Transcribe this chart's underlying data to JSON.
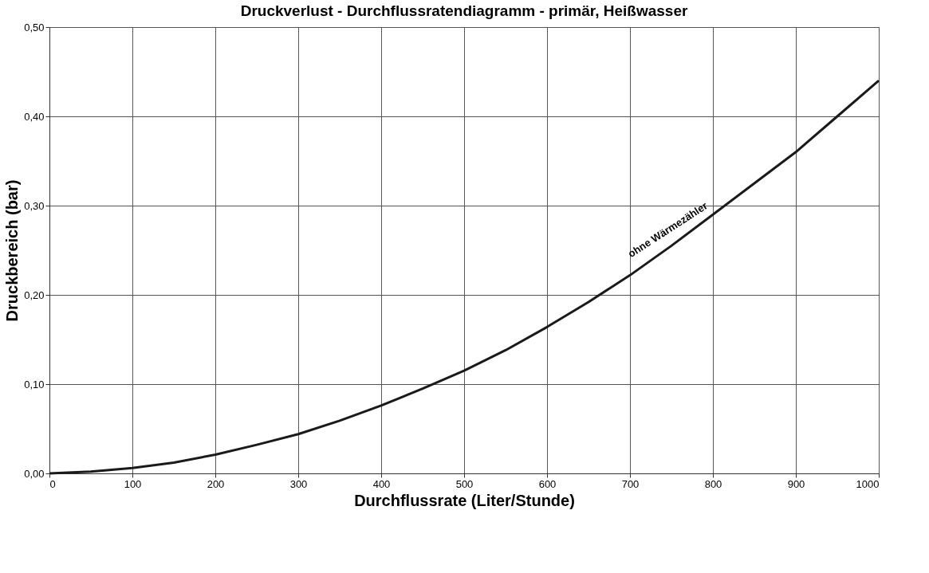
{
  "chart_data": {
    "type": "line",
    "title": "Druckverlust - Durchflussratendiagramm - primär, Heißwasser",
    "xlabel": "Durchflussrate (Liter/Stunde)",
    "ylabel": "Druckbereich (bar)",
    "x": [
      0,
      50,
      100,
      150,
      200,
      250,
      300,
      350,
      400,
      450,
      500,
      550,
      600,
      650,
      700,
      750,
      800,
      850,
      900,
      950,
      1000
    ],
    "series": [
      {
        "color": "#1a1a1a",
        "values": [
          0,
          0.002,
          0.006,
          0.012,
          0.021,
          0.032,
          0.044,
          0.059,
          0.076,
          0.095,
          0.115,
          0.138,
          0.164,
          0.192,
          0.222,
          0.255,
          0.29,
          0.325,
          0.36,
          0.4,
          0.44
        ]
      }
    ],
    "xlim": [
      0,
      1000
    ],
    "xticks": [
      0,
      100,
      200,
      300,
      400,
      500,
      600,
      700,
      800,
      900,
      1000
    ],
    "ylim": [
      0,
      0.5
    ],
    "yticks": [
      {
        "value": 0,
        "label": "0,00"
      },
      {
        "value": 0.1,
        "label": "0,10"
      },
      {
        "value": 0.2,
        "label": "0,20"
      },
      {
        "value": 0.3,
        "label": "0,30"
      },
      {
        "value": 0.4,
        "label": "0,40"
      },
      {
        "value": 0.5,
        "label": "0,50"
      }
    ],
    "annotations": [
      {
        "text": "ohne Wärmezähler",
        "x": 760,
        "y": 0.262
      }
    ],
    "grid": true,
    "marker": "none",
    "line_style": "solid"
  }
}
